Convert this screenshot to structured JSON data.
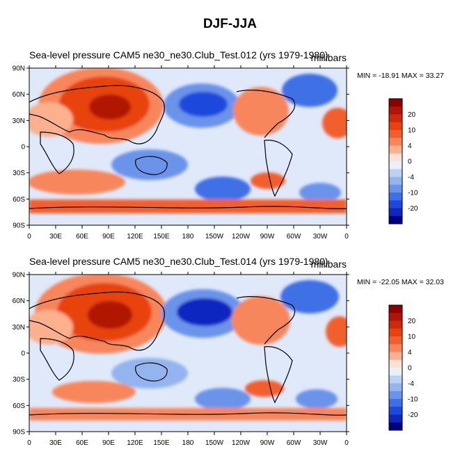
{
  "figure": {
    "title": "DJF-JJA",
    "lat_labels": [
      "90N",
      "60N",
      "30N",
      "0",
      "30S",
      "60S",
      "90S"
    ],
    "lon_labels": [
      "0",
      "30E",
      "60E",
      "90E",
      "120E",
      "150E",
      "180",
      "150W",
      "120W",
      "90W",
      "60W",
      "30W",
      "0"
    ],
    "colorbar_labels": [
      "20",
      "10",
      "4",
      "0",
      "-4",
      "-10",
      "-20"
    ],
    "colorbar_colors": [
      "#8b0000",
      "#b01406",
      "#cc2a0a",
      "#e8420f",
      "#f25f2d",
      "#f7865c",
      "#fbb08e",
      "#fde2d3",
      "#e8f0fb",
      "#bcd2f5",
      "#93b4ef",
      "#6a93ea",
      "#3f6fe6",
      "#1d48db",
      "#0d28bf",
      "#000080"
    ]
  },
  "panels": [
    {
      "title": "Sea-level pressure  CAM5 ne30_ne30.Club_Test.012 (yrs 1979-1980)",
      "units": "millibars",
      "minmax": "MIN = -18.91 MAX =  33.27"
    },
    {
      "title": "Sea-level pressure  CAM5 ne30_ne30.Club_Test.014 (yrs 1979-1980)",
      "units": "millibars",
      "minmax": "MIN = -22.05 MAX =  32.03"
    }
  ]
}
